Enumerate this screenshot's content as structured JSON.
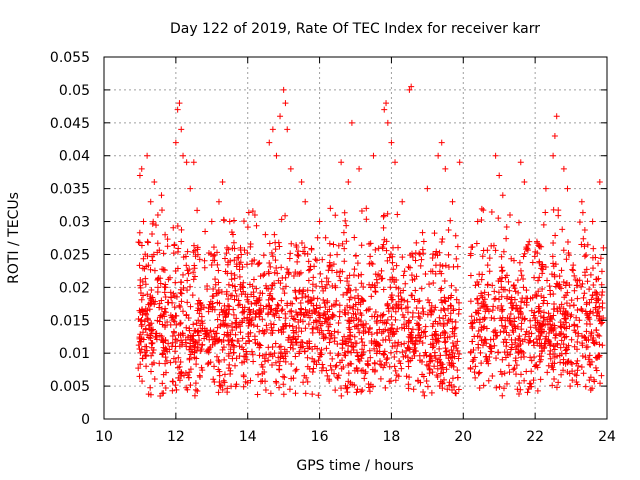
{
  "chart_data": {
    "type": "scatter",
    "title": "Day 122 of 2019, Rate Of TEC Index for receiver karr",
    "xlabel": "GPS time / hours",
    "ylabel": "ROTI / TECUs",
    "xlim": [
      10,
      24
    ],
    "ylim": [
      0,
      0.055
    ],
    "x_ticks": [
      "10",
      "12",
      "14",
      "16",
      "18",
      "20",
      "22",
      "24"
    ],
    "y_ticks": [
      "0",
      "0.005",
      "0.01",
      "0.015",
      "0.02",
      "0.025",
      "0.03",
      "0.035",
      "0.04",
      "0.045",
      "0.05",
      "0.055"
    ],
    "grid": true,
    "marker": "+",
    "marker_color": "#ff0000",
    "series": [
      {
        "name": "ROTI",
        "points": [
          [
            11.0,
            0.037
          ],
          [
            11.05,
            0.038
          ],
          [
            11.1,
            0.03
          ],
          [
            11.2,
            0.04
          ],
          [
            11.3,
            0.033
          ],
          [
            11.4,
            0.036
          ],
          [
            11.5,
            0.031
          ],
          [
            11.6,
            0.034
          ],
          [
            11.7,
            0.028
          ],
          [
            12.0,
            0.042
          ],
          [
            12.05,
            0.047
          ],
          [
            12.1,
            0.048
          ],
          [
            12.15,
            0.044
          ],
          [
            12.2,
            0.04
          ],
          [
            12.3,
            0.039
          ],
          [
            12.5,
            0.039
          ],
          [
            12.4,
            0.035
          ],
          [
            13.0,
            0.03
          ],
          [
            13.2,
            0.033
          ],
          [
            13.3,
            0.036
          ],
          [
            13.5,
            0.03
          ],
          [
            13.8,
            0.026
          ],
          [
            14.2,
            0.031
          ],
          [
            14.6,
            0.042
          ],
          [
            14.7,
            0.044
          ],
          [
            14.8,
            0.04
          ],
          [
            14.9,
            0.046
          ],
          [
            15.0,
            0.05
          ],
          [
            15.05,
            0.048
          ],
          [
            15.1,
            0.044
          ],
          [
            15.2,
            0.038
          ],
          [
            15.5,
            0.036
          ],
          [
            15.6,
            0.033
          ],
          [
            16.0,
            0.03
          ],
          [
            16.3,
            0.032
          ],
          [
            16.6,
            0.039
          ],
          [
            16.8,
            0.036
          ],
          [
            16.9,
            0.045
          ],
          [
            17.1,
            0.038
          ],
          [
            17.3,
            0.032
          ],
          [
            17.5,
            0.04
          ],
          [
            17.8,
            0.047
          ],
          [
            17.85,
            0.048
          ],
          [
            17.9,
            0.045
          ],
          [
            18.0,
            0.042
          ],
          [
            18.1,
            0.039
          ],
          [
            18.5,
            0.05
          ],
          [
            18.55,
            0.0505
          ],
          [
            18.3,
            0.033
          ],
          [
            19.0,
            0.035
          ],
          [
            19.3,
            0.04
          ],
          [
            19.4,
            0.042
          ],
          [
            19.5,
            0.038
          ],
          [
            19.7,
            0.033
          ],
          [
            19.9,
            0.039
          ],
          [
            20.4,
            0.03
          ],
          [
            20.9,
            0.04
          ],
          [
            21.0,
            0.037
          ],
          [
            21.1,
            0.034
          ],
          [
            21.3,
            0.031
          ],
          [
            21.6,
            0.039
          ],
          [
            21.7,
            0.036
          ],
          [
            22.3,
            0.035
          ],
          [
            22.5,
            0.04
          ],
          [
            22.55,
            0.043
          ],
          [
            22.6,
            0.046
          ],
          [
            22.8,
            0.038
          ],
          [
            22.9,
            0.035
          ],
          [
            23.3,
            0.033
          ],
          [
            23.6,
            0.03
          ],
          [
            23.8,
            0.036
          ],
          [
            23.9,
            0.026
          ]
        ]
      }
    ]
  }
}
